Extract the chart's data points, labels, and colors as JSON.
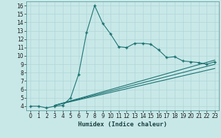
{
  "xlabel": "Humidex (Indice chaleur)",
  "bg_color": "#c8e8e8",
  "line_color": "#1a7070",
  "grid_color": "#b0d4d4",
  "xlim": [
    -0.5,
    23.5
  ],
  "ylim": [
    3.5,
    16.5
  ],
  "xticks": [
    0,
    1,
    2,
    3,
    4,
    5,
    6,
    7,
    8,
    9,
    10,
    11,
    12,
    13,
    14,
    15,
    16,
    17,
    18,
    19,
    20,
    21,
    22,
    23
  ],
  "yticks": [
    4,
    5,
    6,
    7,
    8,
    9,
    10,
    11,
    12,
    13,
    14,
    15,
    16
  ],
  "line1_x": [
    0,
    1,
    2,
    3,
    4,
    5,
    6,
    7,
    8,
    9,
    10,
    11,
    12,
    13,
    14,
    15,
    16,
    17,
    18,
    19,
    20,
    21,
    22,
    23
  ],
  "line1_y": [
    4.0,
    4.0,
    3.8,
    4.0,
    4.1,
    5.0,
    7.8,
    12.8,
    16.0,
    13.9,
    12.6,
    11.1,
    11.0,
    11.5,
    11.5,
    11.4,
    10.7,
    9.8,
    9.9,
    9.4,
    9.3,
    9.2,
    9.0,
    9.3
  ],
  "line2_x": [
    3,
    23
  ],
  "line2_y": [
    4.1,
    9.5
  ],
  "line3_x": [
    3,
    23
  ],
  "line3_y": [
    4.1,
    9.0
  ],
  "line4_x": [
    3,
    23
  ],
  "line4_y": [
    4.1,
    8.5
  ],
  "tick_fontsize": 5.5,
  "xlabel_fontsize": 6.5
}
